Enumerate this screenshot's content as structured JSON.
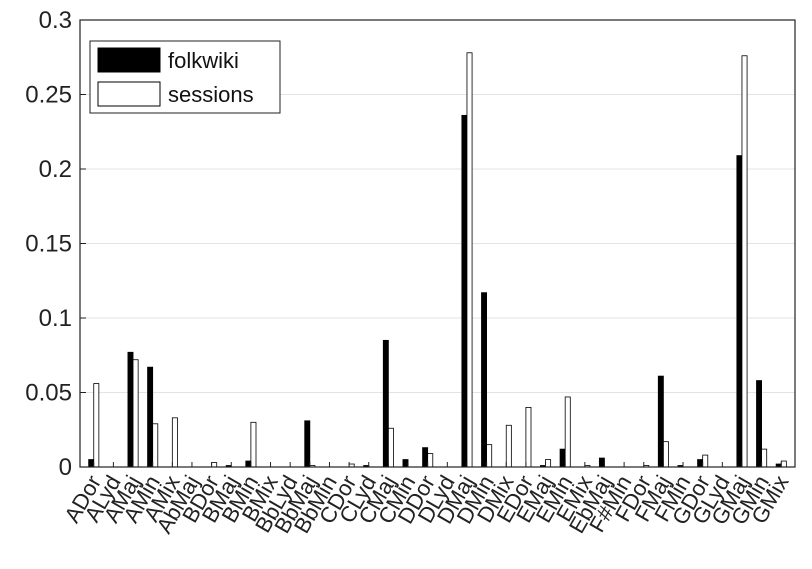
{
  "chart_data": {
    "type": "bar",
    "categories": [
      "ADor",
      "ALyd",
      "AMaj",
      "AMin",
      "AMix",
      "AbMaj",
      "BDor",
      "BMaj",
      "BMin",
      "BMix",
      "BbLyd",
      "BbMaj",
      "BbMin",
      "CDor",
      "CLyd",
      "CMaj",
      "CMin",
      "DDor",
      "DLyd",
      "DMaj",
      "DMin",
      "DMix",
      "EDor",
      "EMaj",
      "EMin",
      "EMix",
      "EbMaj",
      "F#Min",
      "FDor",
      "FMaj",
      "FMin",
      "GDor",
      "GLyd",
      "GMaj",
      "GMin",
      "GMix"
    ],
    "series": [
      {
        "name": "folkwiki",
        "color": "#000000",
        "values": [
          0.005,
          0,
          0.077,
          0.067,
          0,
          0,
          0,
          0.001,
          0.004,
          0,
          0,
          0.031,
          0,
          0,
          0.001,
          0.085,
          0.005,
          0.013,
          0,
          0.236,
          0.117,
          0,
          0,
          0.001,
          0.012,
          0,
          0.006,
          0,
          0,
          0.061,
          0.001,
          0.005,
          0,
          0.209,
          0.058,
          0.002
        ]
      },
      {
        "name": "sessions",
        "color": "#ffffff",
        "values": [
          0.056,
          0,
          0.072,
          0.029,
          0.033,
          0,
          0.003,
          0,
          0.03,
          0,
          0,
          0.001,
          0,
          0.002,
          0,
          0.026,
          0,
          0.009,
          0,
          0.278,
          0.015,
          0.028,
          0.04,
          0.005,
          0.047,
          0.001,
          0,
          0,
          0.001,
          0.017,
          0,
          0.008,
          0,
          0.276,
          0.012,
          0.004
        ]
      }
    ],
    "yticks": [
      "0",
      "0.05",
      "0.1",
      "0.15",
      "0.2",
      "0.25",
      "0.3"
    ],
    "ylim": [
      0,
      0.3
    ],
    "grid": "horizontal",
    "legend_position": "top-left"
  }
}
